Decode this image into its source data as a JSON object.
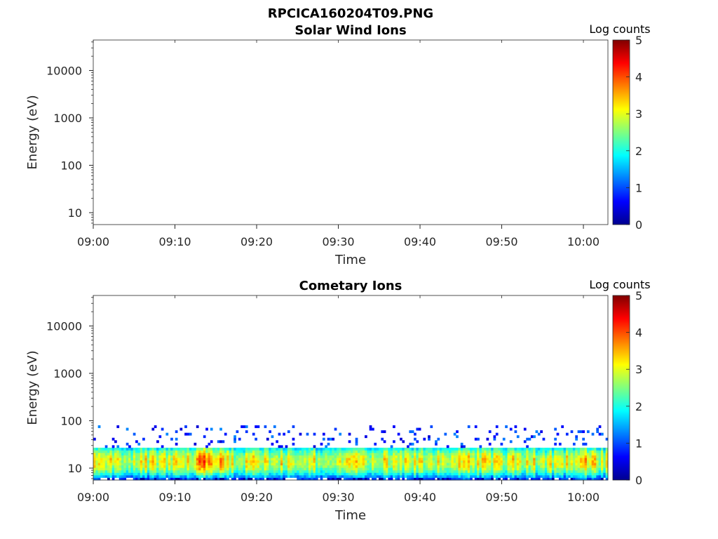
{
  "figure": {
    "title": "RPCICA160204T09.PNG"
  },
  "chart_data": [
    {
      "type": "heatmap",
      "title": "Solar Wind Ions",
      "xlabel": "Time",
      "ylabel": "Energy (eV)",
      "x_ticks": [
        "09:00",
        "09:10",
        "09:20",
        "09:30",
        "09:40",
        "09:50",
        "10:00"
      ],
      "x_range_minutes": [
        0,
        63
      ],
      "y_scale": "log",
      "y_ticks": [
        10,
        100,
        1000,
        10000
      ],
      "y_tick_labels": [
        "10",
        "100",
        "1000",
        "10000"
      ],
      "ylim": [
        5.6,
        44000
      ],
      "colorbar": {
        "label": "Log counts",
        "range": [
          0,
          5
        ],
        "ticks": [
          "0",
          "1",
          "2",
          "3",
          "4",
          "5"
        ],
        "colormap": "jet"
      },
      "data": "empty"
    },
    {
      "type": "heatmap",
      "title": "Cometary Ions",
      "xlabel": "Time",
      "ylabel": "Energy (eV)",
      "x_ticks": [
        "09:00",
        "09:10",
        "09:20",
        "09:30",
        "09:40",
        "09:50",
        "10:00"
      ],
      "x_range_minutes": [
        0,
        63
      ],
      "y_scale": "log",
      "y_ticks": [
        10,
        100,
        1000,
        10000
      ],
      "y_tick_labels": [
        "10",
        "100",
        "1000",
        "10000"
      ],
      "ylim": [
        5.6,
        44000
      ],
      "colorbar": {
        "label": "Log counts",
        "range": [
          0,
          5
        ],
        "ticks": [
          "0",
          "1",
          "2",
          "3",
          "4",
          "5"
        ],
        "colormap": "jet"
      },
      "band": {
        "energy_min_eV": 5.6,
        "core_top_eV": 28,
        "sparse_top_eV": 80,
        "peak_energy_eV": 14,
        "peak_log_counts": 3.2,
        "hot_spots": [
          {
            "minute": 13.5,
            "log_counts": 4.1
          },
          {
            "minute": 16,
            "log_counts": 3.7
          },
          {
            "minute": 45.5,
            "log_counts": 3.9
          },
          {
            "minute": 60,
            "log_counts": 4.0
          }
        ]
      }
    }
  ]
}
